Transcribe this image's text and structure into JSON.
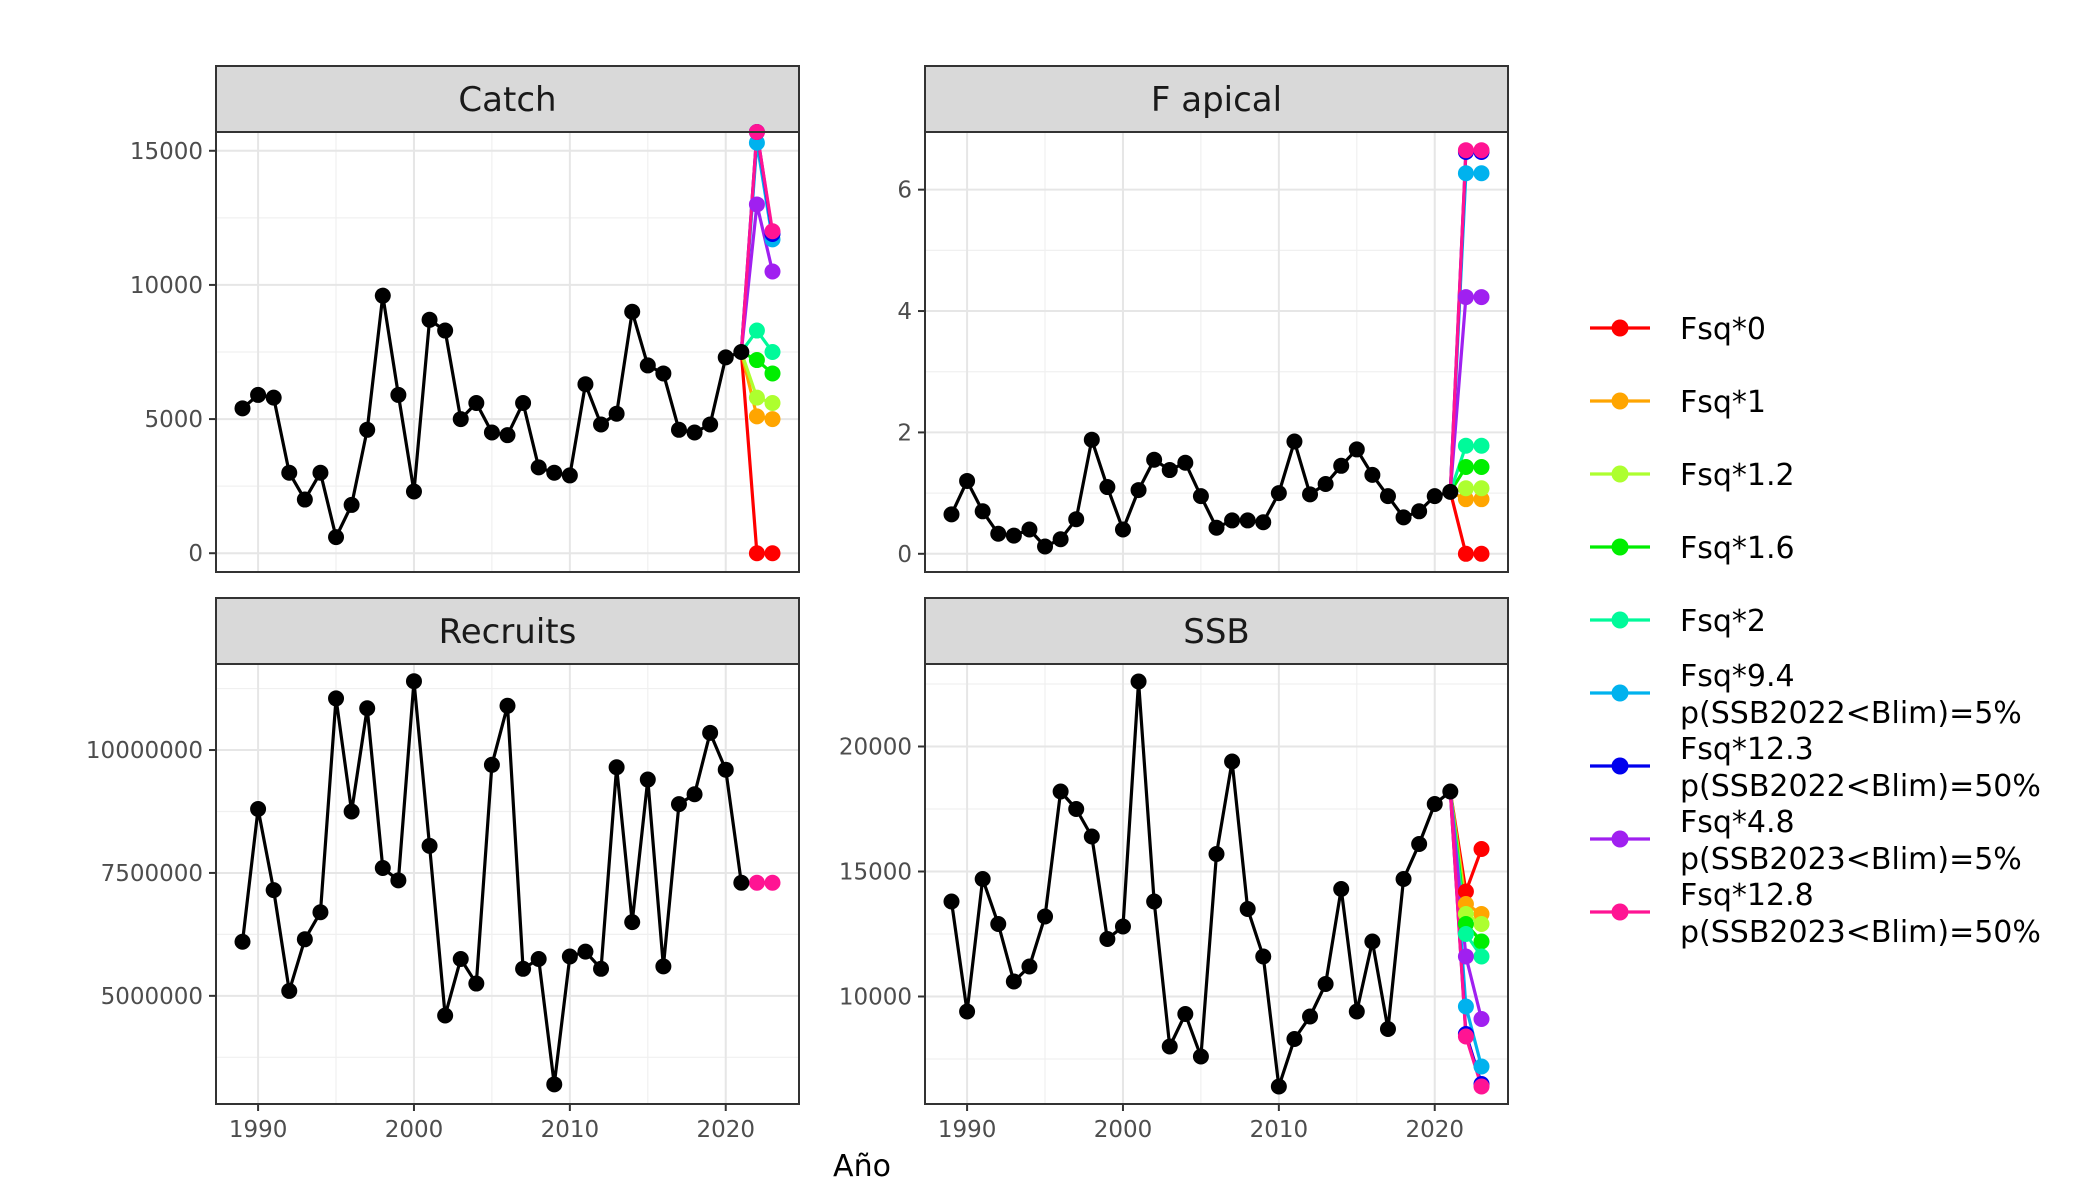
{
  "xlabel": "Año",
  "legend": [
    {
      "name": "Fsq*0",
      "color": "#FF0000"
    },
    {
      "name": "Fsq*1",
      "color": "#FFA500"
    },
    {
      "name": "Fsq*1.2",
      "color": "#ADFF2F"
    },
    {
      "name": "Fsq*1.6",
      "color": "#00EE00"
    },
    {
      "name": "Fsq*2",
      "color": "#00FA9A"
    },
    {
      "name": "Fsq*9.4\np(SSB2022<Blim)=5%",
      "color": "#00B2EE"
    },
    {
      "name": "Fsq*12.3\np(SSB2022<Blim)=50%",
      "color": "#0000EE"
    },
    {
      "name": "Fsq*4.8\np(SSB2023<Blim)=5%",
      "color": "#A020F0"
    },
    {
      "name": "Fsq*12.8\np(SSB2023<Blim)=50%",
      "color": "#FF1493"
    }
  ],
  "chart_data": [
    {
      "type": "line",
      "title": "Catch",
      "x_ticks": [
        1990,
        2000,
        2010,
        2020
      ],
      "xlim": [
        1987.3,
        2024.7
      ],
      "y_ticks": [
        0,
        5000,
        10000,
        15000
      ],
      "ylim": [
        -700,
        15700
      ],
      "history": {
        "x": [
          1989,
          1990,
          1991,
          1992,
          1993,
          1994,
          1995,
          1996,
          1997,
          1998,
          1999,
          2000,
          2001,
          2002,
          2003,
          2004,
          2005,
          2006,
          2007,
          2008,
          2009,
          2010,
          2011,
          2012,
          2013,
          2014,
          2015,
          2016,
          2017,
          2018,
          2019,
          2020,
          2021
        ],
        "y": [
          5400,
          5900,
          5800,
          3000,
          2000,
          3000,
          600,
          1800,
          4600,
          9600,
          5900,
          2300,
          8700,
          8300,
          5000,
          5600,
          4500,
          4400,
          5600,
          3200,
          3000,
          2900,
          6300,
          4800,
          5200,
          9000,
          7000,
          6700,
          4600,
          4500,
          4800,
          7300,
          7500
        ]
      },
      "projections": {
        "x": [
          2022,
          2023
        ],
        "series": [
          {
            "name": "Fsq*0",
            "values": [
              0,
              0
            ]
          },
          {
            "name": "Fsq*1",
            "values": [
              5100,
              5000
            ]
          },
          {
            "name": "Fsq*1.2",
            "values": [
              5800,
              5600
            ]
          },
          {
            "name": "Fsq*1.6",
            "values": [
              7200,
              6700
            ]
          },
          {
            "name": "Fsq*2",
            "values": [
              8300,
              7500
            ]
          },
          {
            "name": "Fsq*9.4\np(SSB2022<Blim)=5%",
            "values": [
              15300,
              11700
            ]
          },
          {
            "name": "Fsq*12.3\np(SSB2022<Blim)=50%",
            "values": [
              15700,
              11900
            ]
          },
          {
            "name": "Fsq*4.8\np(SSB2023<Blim)=5%",
            "values": [
              13000,
              10500
            ]
          },
          {
            "name": "Fsq*12.8\np(SSB2023<Blim)=50%",
            "values": [
              15700,
              12000
            ]
          }
        ]
      }
    },
    {
      "type": "line",
      "title": "F apical",
      "x_ticks": [
        1990,
        2000,
        2010,
        2020
      ],
      "xlim": [
        1987.3,
        2024.7
      ],
      "y_ticks": [
        0,
        2,
        4,
        6
      ],
      "ylim": [
        -0.3,
        6.95
      ],
      "history": {
        "x": [
          1989,
          1990,
          1991,
          1992,
          1993,
          1994,
          1995,
          1996,
          1997,
          1998,
          1999,
          2000,
          2001,
          2002,
          2003,
          2004,
          2005,
          2006,
          2007,
          2008,
          2009,
          2010,
          2011,
          2012,
          2013,
          2014,
          2015,
          2016,
          2017,
          2018,
          2019,
          2020,
          2021
        ],
        "y": [
          0.65,
          1.2,
          0.7,
          0.33,
          0.3,
          0.4,
          0.12,
          0.24,
          0.57,
          1.88,
          1.1,
          0.4,
          1.05,
          1.55,
          1.38,
          1.5,
          0.95,
          0.43,
          0.55,
          0.55,
          0.52,
          1.0,
          1.85,
          0.98,
          1.15,
          1.45,
          1.72,
          1.3,
          0.95,
          0.6,
          0.7,
          0.95,
          1.02
        ]
      },
      "projections": {
        "x": [
          2022,
          2023
        ],
        "series": [
          {
            "name": "Fsq*0",
            "values": [
              0,
              0
            ]
          },
          {
            "name": "Fsq*1",
            "values": [
              0.9,
              0.9
            ]
          },
          {
            "name": "Fsq*1.2",
            "values": [
              1.08,
              1.08
            ]
          },
          {
            "name": "Fsq*1.6",
            "values": [
              1.43,
              1.43
            ]
          },
          {
            "name": "Fsq*2",
            "values": [
              1.78,
              1.78
            ]
          },
          {
            "name": "Fsq*9.4\np(SSB2022<Blim)=5%",
            "values": [
              6.27,
              6.27
            ]
          },
          {
            "name": "Fsq*12.3\np(SSB2022<Blim)=50%",
            "values": [
              6.62,
              6.62
            ]
          },
          {
            "name": "Fsq*4.8\np(SSB2023<Blim)=5%",
            "values": [
              4.23,
              4.23
            ]
          },
          {
            "name": "Fsq*12.8\np(SSB2023<Blim)=50%",
            "values": [
              6.65,
              6.65
            ]
          }
        ]
      }
    },
    {
      "type": "line",
      "title": "Recruits",
      "x_ticks": [
        1990,
        2000,
        2010,
        2020
      ],
      "xlim": [
        1987.3,
        2024.7
      ],
      "y_ticks": [
        5000000,
        7500000,
        10000000
      ],
      "ylim": [
        2800000,
        11750000
      ],
      "history": {
        "x": [
          1989,
          1990,
          1991,
          1992,
          1993,
          1994,
          1995,
          1996,
          1997,
          1998,
          1999,
          2000,
          2001,
          2002,
          2003,
          2004,
          2005,
          2006,
          2007,
          2008,
          2009,
          2010,
          2011,
          2012,
          2013,
          2014,
          2015,
          2016,
          2017,
          2018,
          2019,
          2020,
          2021
        ],
        "y": [
          6100000,
          8800000,
          7150000,
          5100000,
          6150000,
          6700000,
          11050000,
          8750000,
          10850000,
          7600000,
          7350000,
          11400000,
          8050000,
          4600000,
          5750000,
          5250000,
          9700000,
          10900000,
          5550000,
          5750000,
          3200000,
          5800000,
          5900000,
          5550000,
          9650000,
          6500000,
          9400000,
          5600000,
          8900000,
          9100000,
          10350000,
          9600000,
          7300000
        ]
      },
      "projections": {
        "x": [
          2022,
          2023
        ],
        "series": [
          {
            "name": "Fsq*12.8\np(SSB2023<Blim)=50%",
            "values": [
              7300000,
              7300000
            ]
          }
        ]
      }
    },
    {
      "type": "line",
      "title": "SSB",
      "x_ticks": [
        1990,
        2000,
        2010,
        2020
      ],
      "xlim": [
        1987.3,
        2024.7
      ],
      "y_ticks": [
        10000,
        15000,
        20000
      ],
      "ylim": [
        5700,
        23300
      ],
      "history": {
        "x": [
          1989,
          1990,
          1991,
          1992,
          1993,
          1994,
          1995,
          1996,
          1997,
          1998,
          1999,
          2000,
          2001,
          2002,
          2003,
          2004,
          2005,
          2006,
          2007,
          2008,
          2009,
          2010,
          2011,
          2012,
          2013,
          2014,
          2015,
          2016,
          2017,
          2018,
          2019,
          2020,
          2021
        ],
        "y": [
          13800,
          9400,
          14700,
          12900,
          10600,
          11200,
          13200,
          18200,
          17500,
          16400,
          12300,
          12800,
          22600,
          13800,
          8000,
          9300,
          7600,
          15700,
          19400,
          13500,
          11600,
          6400,
          8300,
          9200,
          10500,
          14300,
          9400,
          12200,
          8700,
          14700,
          16100,
          17700,
          18200
        ]
      },
      "projections": {
        "x": [
          2022,
          2023
        ],
        "series": [
          {
            "name": "Fsq*0",
            "values": [
              14200,
              15900
            ]
          },
          {
            "name": "Fsq*1",
            "values": [
              13700,
              13300
            ]
          },
          {
            "name": "Fsq*1.2",
            "values": [
              13300,
              12900
            ]
          },
          {
            "name": "Fsq*1.6",
            "values": [
              12900,
              12200
            ]
          },
          {
            "name": "Fsq*2",
            "values": [
              12500,
              11600
            ]
          },
          {
            "name": "Fsq*9.4\np(SSB2022<Blim)=5%",
            "values": [
              9600,
              7200
            ]
          },
          {
            "name": "Fsq*12.3\np(SSB2022<Blim)=50%",
            "values": [
              8500,
              6500
            ]
          },
          {
            "name": "Fsq*4.8\np(SSB2023<Blim)=5%",
            "values": [
              11600,
              9100
            ]
          },
          {
            "name": "Fsq*12.8\np(SSB2023<Blim)=50%",
            "values": [
              8400,
              6400
            ]
          }
        ]
      }
    }
  ]
}
